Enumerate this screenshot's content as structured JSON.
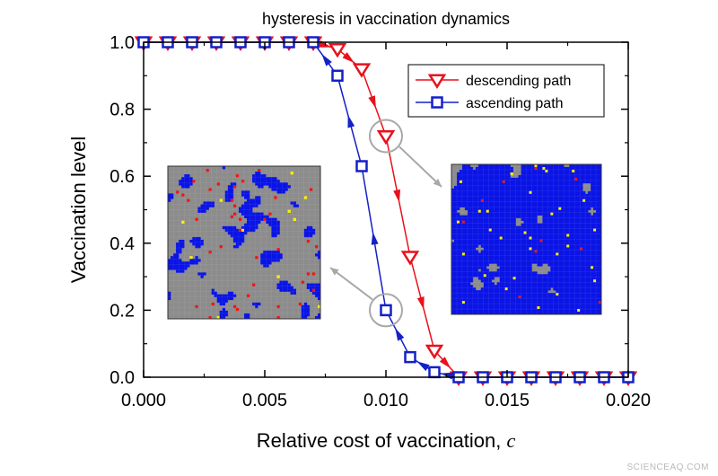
{
  "chart_data": {
    "type": "line",
    "title": "hysteresis in vaccination dynamics",
    "xlabel": "Relative cost of vaccination, ",
    "xlabel_var": "c",
    "ylabel": "Vaccination level",
    "xlim": [
      0,
      0.02
    ],
    "ylim": [
      0,
      1.0
    ],
    "x_ticks": [
      "0.000",
      "0.005",
      "0.010",
      "0.015",
      "0.020"
    ],
    "y_ticks": [
      "0.0",
      "0.2",
      "0.4",
      "0.6",
      "0.8",
      "1.0"
    ],
    "legend_position": "top-right",
    "series": [
      {
        "name": "descending path",
        "color": "#e8111c",
        "marker": "triangle-down",
        "x": [
          0.0,
          0.001,
          0.002,
          0.003,
          0.004,
          0.005,
          0.006,
          0.007,
          0.008,
          0.009,
          0.01,
          0.011,
          0.012,
          0.013,
          0.014,
          0.015,
          0.016,
          0.017,
          0.018,
          0.019,
          0.02
        ],
        "values": [
          1.0,
          1.0,
          1.0,
          1.0,
          1.0,
          1.0,
          1.0,
          1.0,
          0.98,
          0.92,
          0.72,
          0.36,
          0.08,
          0.0,
          0.0,
          0.0,
          0.0,
          0.0,
          0.0,
          0.0,
          0.0
        ]
      },
      {
        "name": "ascending path",
        "color": "#1420c8",
        "marker": "square",
        "x": [
          0.0,
          0.001,
          0.002,
          0.003,
          0.004,
          0.005,
          0.006,
          0.007,
          0.008,
          0.009,
          0.01,
          0.011,
          0.012,
          0.013,
          0.014,
          0.015,
          0.016,
          0.017,
          0.018,
          0.019,
          0.02
        ],
        "values": [
          1.0,
          1.0,
          1.0,
          1.0,
          1.0,
          1.0,
          1.0,
          1.0,
          0.9,
          0.63,
          0.2,
          0.06,
          0.015,
          0.0,
          0.0,
          0.0,
          0.0,
          0.0,
          0.0,
          0.0,
          0.0
        ]
      }
    ],
    "highlighted_points": [
      {
        "series": "descending path",
        "x": 0.01,
        "y": 0.72
      },
      {
        "series": "ascending path",
        "x": 0.01,
        "y": 0.2
      }
    ],
    "inset_colors": {
      "background": "#8c8c8c",
      "vaccinated": "#0a14e6",
      "infected": "#f01414",
      "other": "#ffee00"
    }
  },
  "watermark": "SCIENCEAQ.COM"
}
